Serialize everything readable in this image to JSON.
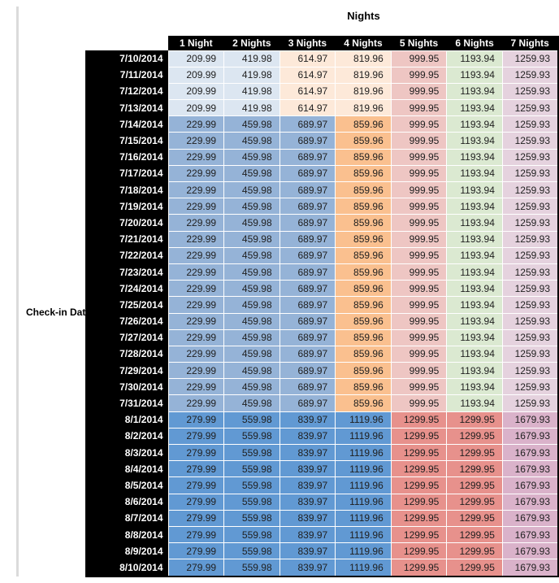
{
  "title": "Nights",
  "row_axis_label": "Check-in Date",
  "palette": {
    "blue_pale": "#dce6f1",
    "blue_mid": "#95b3d7",
    "blue_deep": "#6199d3",
    "orange_pale": "#fde9d9",
    "orange_mid": "#fac08f",
    "red_pale": "#eec6c3",
    "red_mid": "#e7918c",
    "green_pale": "#dbe9d1",
    "purple_pale": "#e5d2de",
    "purple_mid": "#dab2ca"
  },
  "chart_data": {
    "type": "table",
    "title": "Nights",
    "row_label": "Check-in Date",
    "columns": [
      "1 Night",
      "2 Nights",
      "3 Nights",
      "4 Nights",
      "5 Nights",
      "6 Nights",
      "7 Nights"
    ],
    "bands": {
      "early": [
        "blue_pale",
        "blue_pale",
        "orange_pale",
        "orange_pale",
        "red_pale",
        "green_pale",
        "purple_pale"
      ],
      "peak": [
        "blue_mid",
        "blue_mid",
        "blue_mid",
        "orange_mid",
        "red_pale",
        "green_pale",
        "purple_pale"
      ],
      "august": [
        "blue_deep",
        "blue_deep",
        "blue_deep",
        "blue_deep",
        "red_mid",
        "red_mid",
        "purple_mid"
      ]
    },
    "rows": [
      {
        "date": "7/10/2014",
        "band": "early",
        "values": [
          209.99,
          419.98,
          614.97,
          819.96,
          999.95,
          1193.94,
          1259.93
        ]
      },
      {
        "date": "7/11/2014",
        "band": "early",
        "values": [
          209.99,
          419.98,
          614.97,
          819.96,
          999.95,
          1193.94,
          1259.93
        ]
      },
      {
        "date": "7/12/2014",
        "band": "early",
        "values": [
          209.99,
          419.98,
          614.97,
          819.96,
          999.95,
          1193.94,
          1259.93
        ]
      },
      {
        "date": "7/13/2014",
        "band": "early",
        "values": [
          209.99,
          419.98,
          614.97,
          819.96,
          999.95,
          1193.94,
          1259.93
        ]
      },
      {
        "date": "7/14/2014",
        "band": "peak",
        "values": [
          229.99,
          459.98,
          689.97,
          859.96,
          999.95,
          1193.94,
          1259.93
        ]
      },
      {
        "date": "7/15/2014",
        "band": "peak",
        "values": [
          229.99,
          459.98,
          689.97,
          859.96,
          999.95,
          1193.94,
          1259.93
        ]
      },
      {
        "date": "7/16/2014",
        "band": "peak",
        "values": [
          229.99,
          459.98,
          689.97,
          859.96,
          999.95,
          1193.94,
          1259.93
        ]
      },
      {
        "date": "7/17/2014",
        "band": "peak",
        "values": [
          229.99,
          459.98,
          689.97,
          859.96,
          999.95,
          1193.94,
          1259.93
        ]
      },
      {
        "date": "7/18/2014",
        "band": "peak",
        "values": [
          229.99,
          459.98,
          689.97,
          859.96,
          999.95,
          1193.94,
          1259.93
        ]
      },
      {
        "date": "7/19/2014",
        "band": "peak",
        "values": [
          229.99,
          459.98,
          689.97,
          859.96,
          999.95,
          1193.94,
          1259.93
        ]
      },
      {
        "date": "7/20/2014",
        "band": "peak",
        "values": [
          229.99,
          459.98,
          689.97,
          859.96,
          999.95,
          1193.94,
          1259.93
        ]
      },
      {
        "date": "7/21/2014",
        "band": "peak",
        "values": [
          229.99,
          459.98,
          689.97,
          859.96,
          999.95,
          1193.94,
          1259.93
        ]
      },
      {
        "date": "7/22/2014",
        "band": "peak",
        "values": [
          229.99,
          459.98,
          689.97,
          859.96,
          999.95,
          1193.94,
          1259.93
        ]
      },
      {
        "date": "7/23/2014",
        "band": "peak",
        "values": [
          229.99,
          459.98,
          689.97,
          859.96,
          999.95,
          1193.94,
          1259.93
        ]
      },
      {
        "date": "7/24/2014",
        "band": "peak",
        "values": [
          229.99,
          459.98,
          689.97,
          859.96,
          999.95,
          1193.94,
          1259.93
        ]
      },
      {
        "date": "7/25/2014",
        "band": "peak",
        "values": [
          229.99,
          459.98,
          689.97,
          859.96,
          999.95,
          1193.94,
          1259.93
        ]
      },
      {
        "date": "7/26/2014",
        "band": "peak",
        "values": [
          229.99,
          459.98,
          689.97,
          859.96,
          999.95,
          1193.94,
          1259.93
        ]
      },
      {
        "date": "7/27/2014",
        "band": "peak",
        "values": [
          229.99,
          459.98,
          689.97,
          859.96,
          999.95,
          1193.94,
          1259.93
        ]
      },
      {
        "date": "7/28/2014",
        "band": "peak",
        "values": [
          229.99,
          459.98,
          689.97,
          859.96,
          999.95,
          1193.94,
          1259.93
        ]
      },
      {
        "date": "7/29/2014",
        "band": "peak",
        "values": [
          229.99,
          459.98,
          689.97,
          859.96,
          999.95,
          1193.94,
          1259.93
        ]
      },
      {
        "date": "7/30/2014",
        "band": "peak",
        "values": [
          229.99,
          459.98,
          689.97,
          859.96,
          999.95,
          1193.94,
          1259.93
        ]
      },
      {
        "date": "7/31/2014",
        "band": "peak",
        "values": [
          229.99,
          459.98,
          689.97,
          859.96,
          999.95,
          1193.94,
          1259.93
        ]
      },
      {
        "date": "8/1/2014",
        "band": "august",
        "values": [
          279.99,
          559.98,
          839.97,
          1119.96,
          1299.95,
          1299.95,
          1679.93
        ]
      },
      {
        "date": "8/2/2014",
        "band": "august",
        "values": [
          279.99,
          559.98,
          839.97,
          1119.96,
          1299.95,
          1299.95,
          1679.93
        ]
      },
      {
        "date": "8/3/2014",
        "band": "august",
        "values": [
          279.99,
          559.98,
          839.97,
          1119.96,
          1299.95,
          1299.95,
          1679.93
        ]
      },
      {
        "date": "8/4/2014",
        "band": "august",
        "values": [
          279.99,
          559.98,
          839.97,
          1119.96,
          1299.95,
          1299.95,
          1679.93
        ]
      },
      {
        "date": "8/5/2014",
        "band": "august",
        "values": [
          279.99,
          559.98,
          839.97,
          1119.96,
          1299.95,
          1299.95,
          1679.93
        ]
      },
      {
        "date": "8/6/2014",
        "band": "august",
        "values": [
          279.99,
          559.98,
          839.97,
          1119.96,
          1299.95,
          1299.95,
          1679.93
        ]
      },
      {
        "date": "8/7/2014",
        "band": "august",
        "values": [
          279.99,
          559.98,
          839.97,
          1119.96,
          1299.95,
          1299.95,
          1679.93
        ]
      },
      {
        "date": "8/8/2014",
        "band": "august",
        "values": [
          279.99,
          559.98,
          839.97,
          1119.96,
          1299.95,
          1299.95,
          1679.93
        ]
      },
      {
        "date": "8/9/2014",
        "band": "august",
        "values": [
          279.99,
          559.98,
          839.97,
          1119.96,
          1299.95,
          1299.95,
          1679.93
        ]
      },
      {
        "date": "8/10/2014",
        "band": "august",
        "values": [
          279.99,
          559.98,
          839.97,
          1119.96,
          1299.95,
          1299.95,
          1679.93
        ]
      }
    ]
  }
}
